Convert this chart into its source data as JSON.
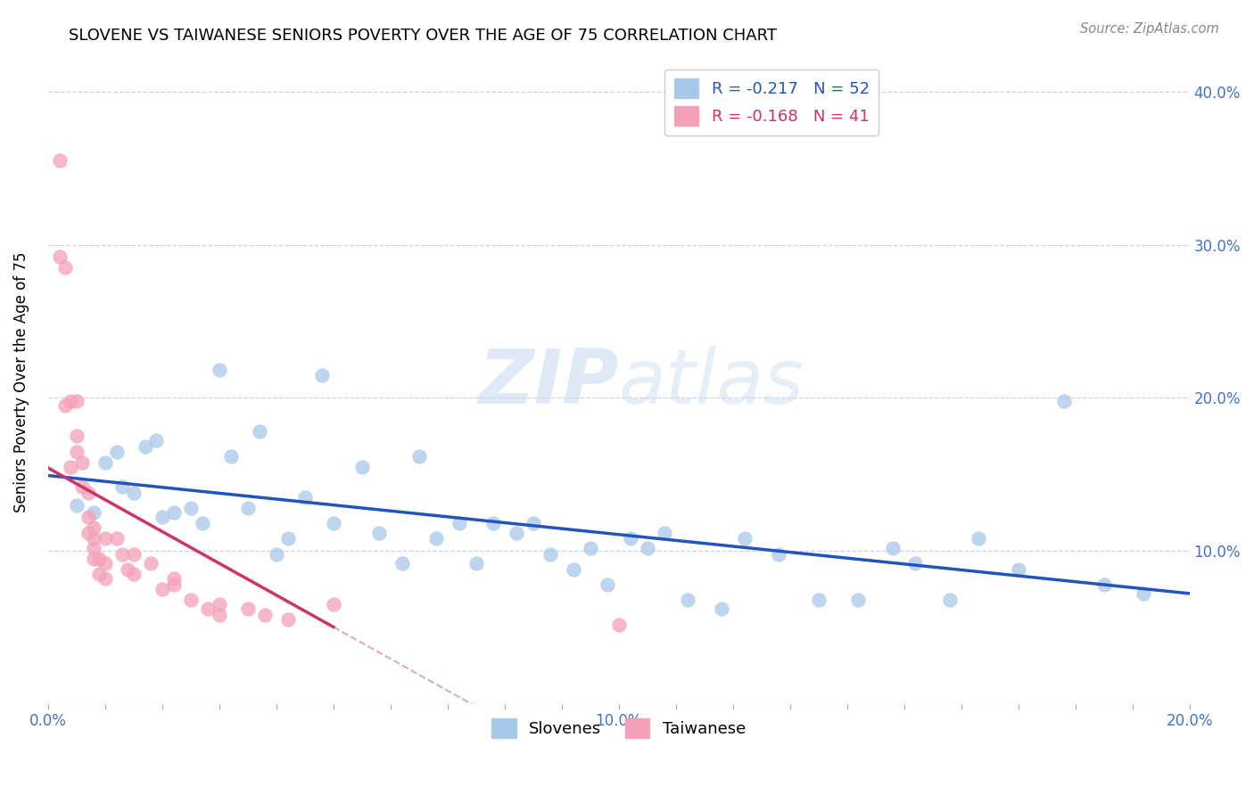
{
  "title": "SLOVENE VS TAIWANESE SENIORS POVERTY OVER THE AGE OF 75 CORRELATION CHART",
  "source": "Source: ZipAtlas.com",
  "ylabel": "Seniors Poverty Over the Age of 75",
  "xlim": [
    0.0,
    0.2
  ],
  "ylim": [
    0.0,
    0.42
  ],
  "ytick_labels": [
    "",
    "10.0%",
    "20.0%",
    "30.0%",
    "40.0%"
  ],
  "ytick_values": [
    0.0,
    0.1,
    0.2,
    0.3,
    0.4
  ],
  "xtick_labels": [
    "0.0%",
    "",
    "",
    "",
    "",
    "",
    "",
    "",
    "",
    "",
    "10.0%",
    "",
    "",
    "",
    "",
    "",
    "",
    "",
    "",
    "",
    "20.0%"
  ],
  "xtick_values": [
    0.0,
    0.01,
    0.02,
    0.03,
    0.04,
    0.05,
    0.06,
    0.07,
    0.08,
    0.09,
    0.1,
    0.11,
    0.12,
    0.13,
    0.14,
    0.15,
    0.16,
    0.17,
    0.18,
    0.19,
    0.2
  ],
  "slovene_color": "#a8c8e8",
  "taiwanese_color": "#f4a0b8",
  "slovene_edge_color": "#8ab0d0",
  "taiwanese_edge_color": "#e088a0",
  "slovene_line_color": "#2255BB",
  "taiwanese_line_color": "#CC3366",
  "taiwanese_line_dash_color": "#ddaabb",
  "R_slovene": -0.217,
  "N_slovene": 52,
  "R_taiwanese": -0.168,
  "N_taiwanese": 41,
  "slovene_x": [
    0.005,
    0.008,
    0.01,
    0.012,
    0.013,
    0.015,
    0.017,
    0.019,
    0.02,
    0.022,
    0.025,
    0.027,
    0.03,
    0.032,
    0.035,
    0.037,
    0.04,
    0.042,
    0.045,
    0.048,
    0.05,
    0.055,
    0.058,
    0.062,
    0.065,
    0.068,
    0.072,
    0.075,
    0.078,
    0.082,
    0.085,
    0.088,
    0.092,
    0.095,
    0.098,
    0.102,
    0.105,
    0.108,
    0.112,
    0.118,
    0.122,
    0.128,
    0.135,
    0.142,
    0.148,
    0.152,
    0.158,
    0.163,
    0.17,
    0.178,
    0.185,
    0.192
  ],
  "slovene_y": [
    0.13,
    0.125,
    0.158,
    0.165,
    0.142,
    0.138,
    0.168,
    0.172,
    0.122,
    0.125,
    0.128,
    0.118,
    0.218,
    0.162,
    0.128,
    0.178,
    0.098,
    0.108,
    0.135,
    0.215,
    0.118,
    0.155,
    0.112,
    0.092,
    0.162,
    0.108,
    0.118,
    0.092,
    0.118,
    0.112,
    0.118,
    0.098,
    0.088,
    0.102,
    0.078,
    0.108,
    0.102,
    0.112,
    0.068,
    0.062,
    0.108,
    0.098,
    0.068,
    0.068,
    0.102,
    0.092,
    0.068,
    0.108,
    0.088,
    0.198,
    0.078,
    0.072
  ],
  "taiwanese_x": [
    0.002,
    0.002,
    0.003,
    0.003,
    0.004,
    0.004,
    0.005,
    0.005,
    0.005,
    0.006,
    0.006,
    0.007,
    0.007,
    0.007,
    0.008,
    0.008,
    0.008,
    0.008,
    0.009,
    0.009,
    0.01,
    0.01,
    0.01,
    0.012,
    0.013,
    0.014,
    0.015,
    0.015,
    0.018,
    0.02,
    0.022,
    0.022,
    0.025,
    0.028,
    0.03,
    0.03,
    0.035,
    0.038,
    0.042,
    0.05,
    0.1
  ],
  "taiwanese_y": [
    0.355,
    0.292,
    0.285,
    0.195,
    0.155,
    0.198,
    0.198,
    0.175,
    0.165,
    0.158,
    0.142,
    0.138,
    0.122,
    0.112,
    0.115,
    0.108,
    0.102,
    0.095,
    0.095,
    0.085,
    0.108,
    0.092,
    0.082,
    0.108,
    0.098,
    0.088,
    0.098,
    0.085,
    0.092,
    0.075,
    0.082,
    0.078,
    0.068,
    0.062,
    0.065,
    0.058,
    0.062,
    0.058,
    0.055,
    0.065,
    0.052
  ],
  "watermark_zip": "ZIP",
  "watermark_atlas": "atlas"
}
